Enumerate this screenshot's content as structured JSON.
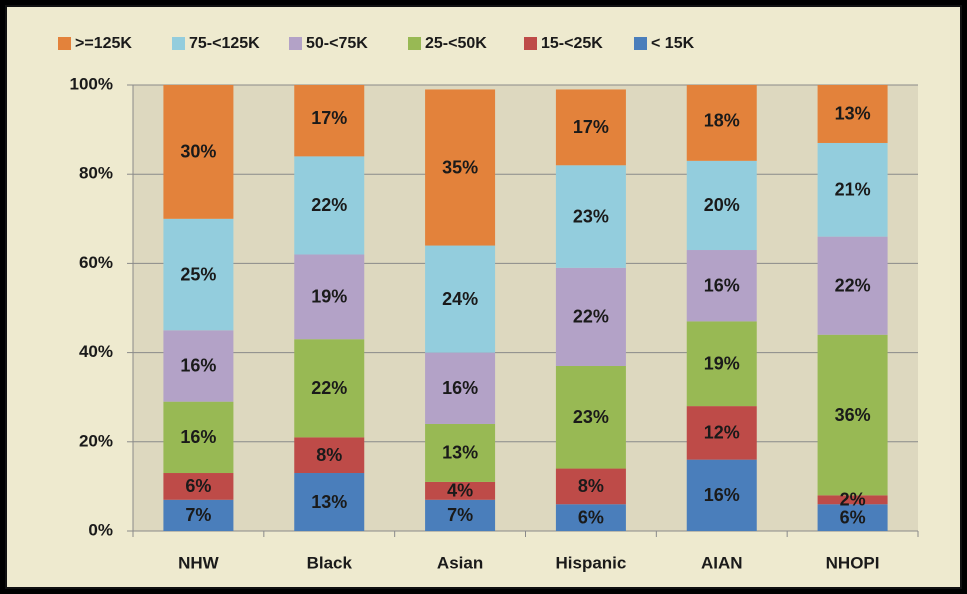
{
  "chart_data": {
    "type": "stacked_bar",
    "categories": [
      "NHW",
      "Black",
      "Asian",
      "Hispanic",
      "AIAN",
      "NHOPI"
    ],
    "series": [
      {
        "name": "< 15K",
        "color": "#4a7ebb",
        "values": [
          7,
          13,
          7,
          6,
          16,
          6
        ],
        "value_labels": [
          "7%",
          "13%",
          "7%",
          "6%",
          "16%",
          "6%"
        ]
      },
      {
        "name": "15-<25K",
        "color": "#be4b48",
        "values": [
          6,
          8,
          4,
          8,
          12,
          2
        ],
        "value_labels": [
          "6%",
          "8%",
          "4%",
          "8%",
          "12%",
          "2%"
        ]
      },
      {
        "name": "25-<50K",
        "color": "#98b954",
        "values": [
          16,
          22,
          13,
          23,
          19,
          36
        ],
        "value_labels": [
          "16%",
          "22%",
          "13%",
          "23%",
          "19%",
          "36%"
        ]
      },
      {
        "name": "50-<75K",
        "color": "#b3a2c7",
        "values": [
          16,
          19,
          16,
          22,
          16,
          22
        ],
        "value_labels": [
          "16%",
          "19%",
          "16%",
          "22%",
          "16%",
          "22%"
        ]
      },
      {
        "name": "75-<125K",
        "color": "#93cddd",
        "values": [
          25,
          22,
          24,
          23,
          20,
          21
        ],
        "value_labels": [
          "25%",
          "22%",
          "24%",
          "23%",
          "20%",
          "21%"
        ]
      },
      {
        "name": ">=125K",
        "color": "#e3823b",
        "values": [
          30,
          17,
          35,
          17,
          18,
          13
        ],
        "value_labels": [
          "30%",
          "17%",
          "35%",
          "17%",
          "18%",
          "13%"
        ]
      }
    ],
    "ylim": [
      0,
      100
    ],
    "yticks": [
      {
        "value": 0,
        "label": "0%"
      },
      {
        "value": 20,
        "label": "20%"
      },
      {
        "value": 40,
        "label": "40%"
      },
      {
        "value": 60,
        "label": "60%"
      },
      {
        "value": 80,
        "label": "80%"
      },
      {
        "value": 100,
        "label": "100%"
      }
    ],
    "grid": true,
    "legend": "top"
  }
}
